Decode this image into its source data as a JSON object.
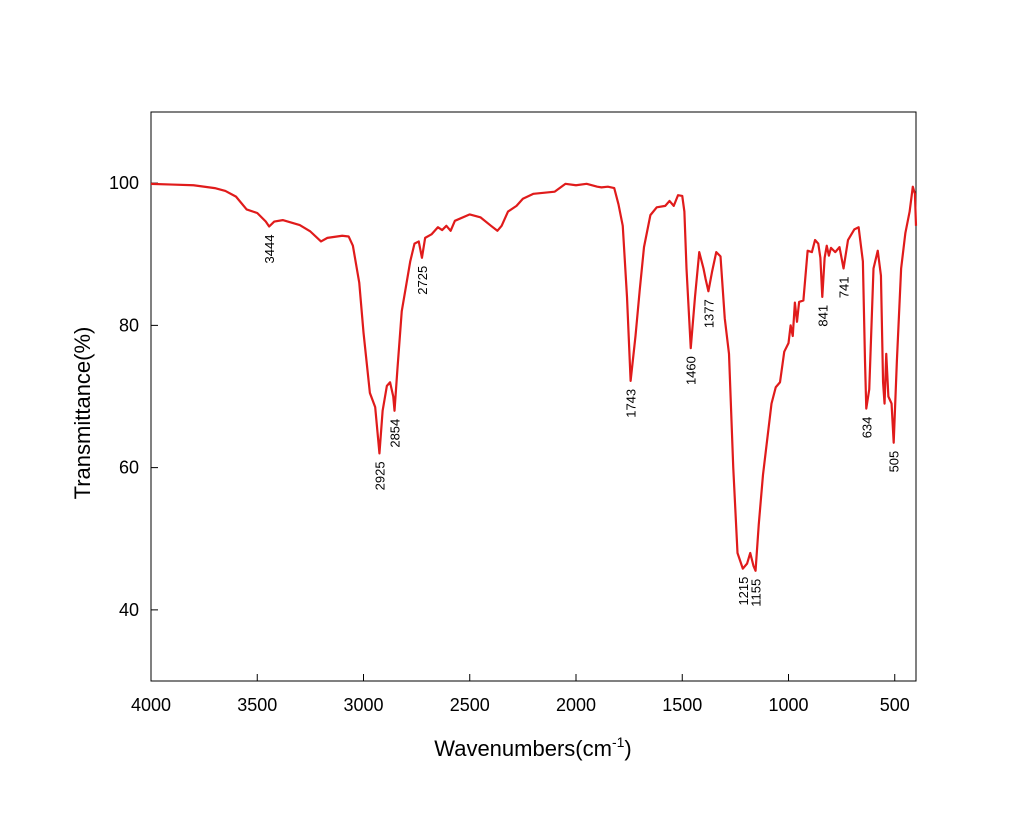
{
  "chart_data": {
    "type": "line",
    "xlabel": "Wavenumbers(cm",
    "xlabel_sup": "-1",
    "xlabel_end": ")",
    "ylabel": "Transmittance(%)",
    "color": "#e01b1b",
    "xlim": [
      4000,
      400
    ],
    "xticks": [
      4000,
      3500,
      3000,
      2500,
      2000,
      1500,
      1000,
      500
    ],
    "ylim": [
      30,
      110
    ],
    "yticks": [
      40,
      60,
      80,
      100
    ],
    "x": [
      4000,
      3900,
      3800,
      3700,
      3650,
      3600,
      3550,
      3500,
      3460,
      3444,
      3420,
      3380,
      3300,
      3250,
      3200,
      3170,
      3100,
      3070,
      3050,
      3020,
      3000,
      2970,
      2945,
      2925,
      2910,
      2890,
      2875,
      2860,
      2854,
      2840,
      2820,
      2800,
      2780,
      2760,
      2740,
      2725,
      2710,
      2680,
      2650,
      2630,
      2610,
      2590,
      2570,
      2500,
      2450,
      2400,
      2370,
      2350,
      2320,
      2280,
      2250,
      2200,
      2100,
      2050,
      2000,
      1950,
      1900,
      1880,
      1850,
      1820,
      1800,
      1780,
      1760,
      1743,
      1720,
      1700,
      1680,
      1650,
      1620,
      1580,
      1560,
      1540,
      1520,
      1500,
      1490,
      1480,
      1460,
      1440,
      1420,
      1400,
      1390,
      1377,
      1360,
      1340,
      1320,
      1300,
      1280,
      1260,
      1240,
      1215,
      1195,
      1180,
      1165,
      1155,
      1140,
      1120,
      1100,
      1080,
      1060,
      1040,
      1020,
      1000,
      990,
      980,
      970,
      960,
      950,
      930,
      910,
      890,
      875,
      860,
      850,
      841,
      830,
      820,
      810,
      800,
      780,
      760,
      741,
      720,
      690,
      670,
      650,
      640,
      634,
      620,
      600,
      580,
      565,
      555,
      548,
      540,
      530,
      515,
      505,
      490,
      470,
      450,
      430,
      415,
      405,
      400
    ],
    "values": [
      99.9,
      99.8,
      99.7,
      99.3,
      98.9,
      98.1,
      96.3,
      95.8,
      94.6,
      93.9,
      94.6,
      94.8,
      94.1,
      93.2,
      91.8,
      92.3,
      92.6,
      92.5,
      91.2,
      86,
      79,
      70.5,
      68.5,
      62,
      68,
      71.5,
      72,
      70,
      68,
      74,
      82,
      85.5,
      89,
      91.5,
      91.8,
      89.5,
      92.3,
      92.8,
      93.8,
      93.4,
      94,
      93.3,
      94.7,
      95.6,
      95.2,
      94,
      93.3,
      94,
      96,
      96.8,
      97.8,
      98.5,
      98.8,
      99.9,
      99.7,
      99.9,
      99.5,
      99.4,
      99.5,
      99.3,
      97,
      94,
      84,
      72.2,
      78.5,
      85,
      91,
      95.5,
      96.6,
      96.8,
      97.5,
      96.8,
      98.3,
      98.2,
      96,
      88,
      76.8,
      84,
      90.3,
      88,
      86.5,
      84.8,
      87.5,
      90.3,
      89.7,
      81,
      76,
      60,
      48,
      45.8,
      46.5,
      48,
      46.2,
      45.5,
      52,
      59,
      64,
      69,
      71.3,
      72,
      76.3,
      77.5,
      80,
      78.5,
      83.2,
      80.5,
      83.3,
      83.5,
      90.5,
      90.3,
      92,
      91.5,
      89.5,
      84,
      89.5,
      91.2,
      89.8,
      90.9,
      90.3,
      91,
      88,
      92,
      93.5,
      93.8,
      89,
      75,
      68.3,
      71,
      88,
      90.5,
      87,
      72,
      69,
      76,
      70,
      69,
      63.5,
      75,
      88,
      93,
      96,
      99.5,
      98.5,
      94
    ],
    "peaks": [
      3444,
      2925,
      2854,
      2725,
      1743,
      1460,
      1377,
      1215,
      1155,
      841,
      741,
      634,
      505
    ]
  }
}
